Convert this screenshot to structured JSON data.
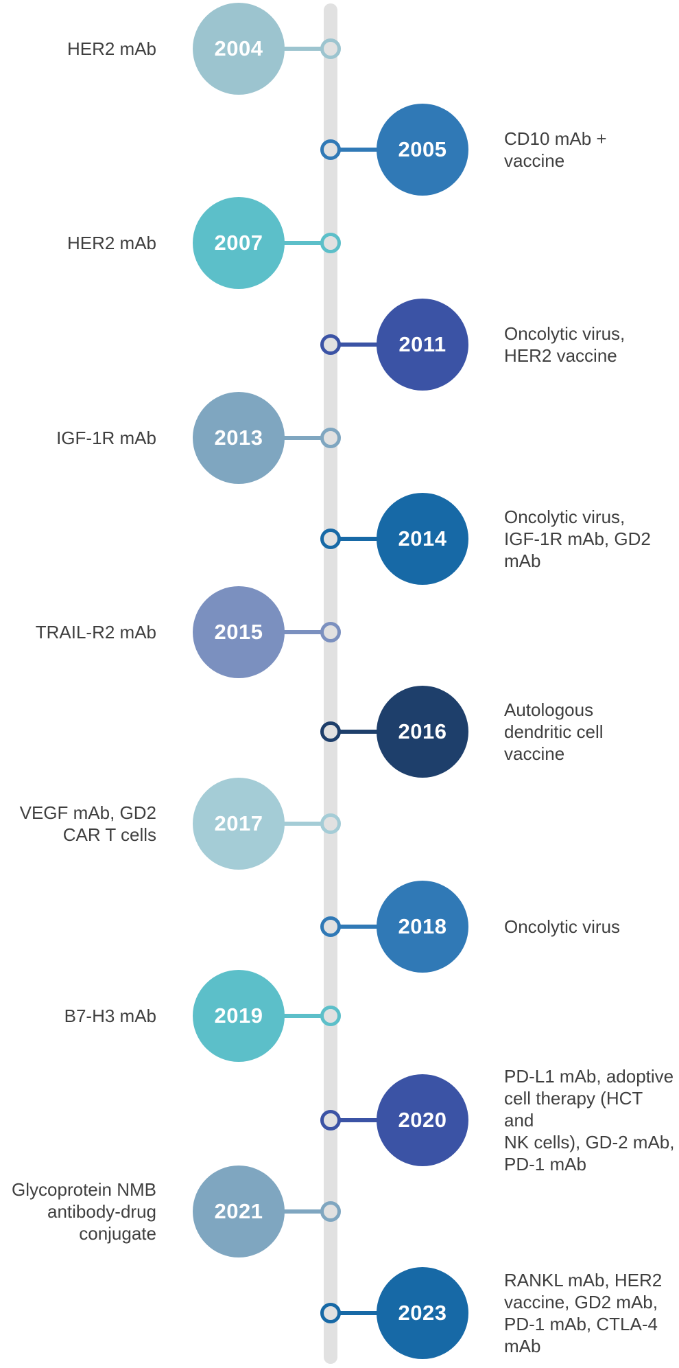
{
  "timeline": {
    "spine_color": "#e1e1e1",
    "label_text_color": "#3f3f3f",
    "year_text_color": "#ffffff",
    "entries": [
      {
        "year": "2004",
        "side": "left",
        "color": "#9cc4cf",
        "label": "HER2 mAb"
      },
      {
        "year": "2005",
        "side": "right",
        "color": "#3079b6",
        "label": "CD10 mAb +\nvaccine"
      },
      {
        "year": "2007",
        "side": "left",
        "color": "#5cbfc9",
        "label": "HER2 mAb"
      },
      {
        "year": "2011",
        "side": "right",
        "color": "#3b53a5",
        "label": "Oncolytic virus,\nHER2 vaccine"
      },
      {
        "year": "2013",
        "side": "left",
        "color": "#7fa6c0",
        "label": "IGF-1R mAb"
      },
      {
        "year": "2014",
        "side": "right",
        "color": "#1769a6",
        "label": "Oncolytic virus,\nIGF-1R mAb, GD2\nmAb"
      },
      {
        "year": "2015",
        "side": "left",
        "color": "#7b90bf",
        "label": "TRAIL-R2 mAb"
      },
      {
        "year": "2016",
        "side": "right",
        "color": "#1e3f6b",
        "label": "Autologous\ndendritic cell\nvaccine"
      },
      {
        "year": "2017",
        "side": "left",
        "color": "#a4ccd6",
        "label": "VEGF mAb, GD2\nCAR T cells"
      },
      {
        "year": "2018",
        "side": "right",
        "color": "#3079b6",
        "label": "Oncolytic virus"
      },
      {
        "year": "2019",
        "side": "left",
        "color": "#5cbfc9",
        "label": "B7-H3 mAb"
      },
      {
        "year": "2020",
        "side": "right",
        "color": "#3b53a5",
        "label": "PD-L1 mAb, adoptive\ncell therapy (HCT and\nNK cells), GD-2 mAb,\nPD-1 mAb"
      },
      {
        "year": "2021",
        "side": "left",
        "color": "#7fa6c0",
        "label": "Glycoprotein NMB\nantibody-drug\nconjugate"
      },
      {
        "year": "2023",
        "side": "right",
        "color": "#1769a6",
        "label": "RANKL mAb, HER2\nvaccine, GD2 mAb,\nPD-1 mAb, CTLA-4\nmAb"
      }
    ]
  }
}
